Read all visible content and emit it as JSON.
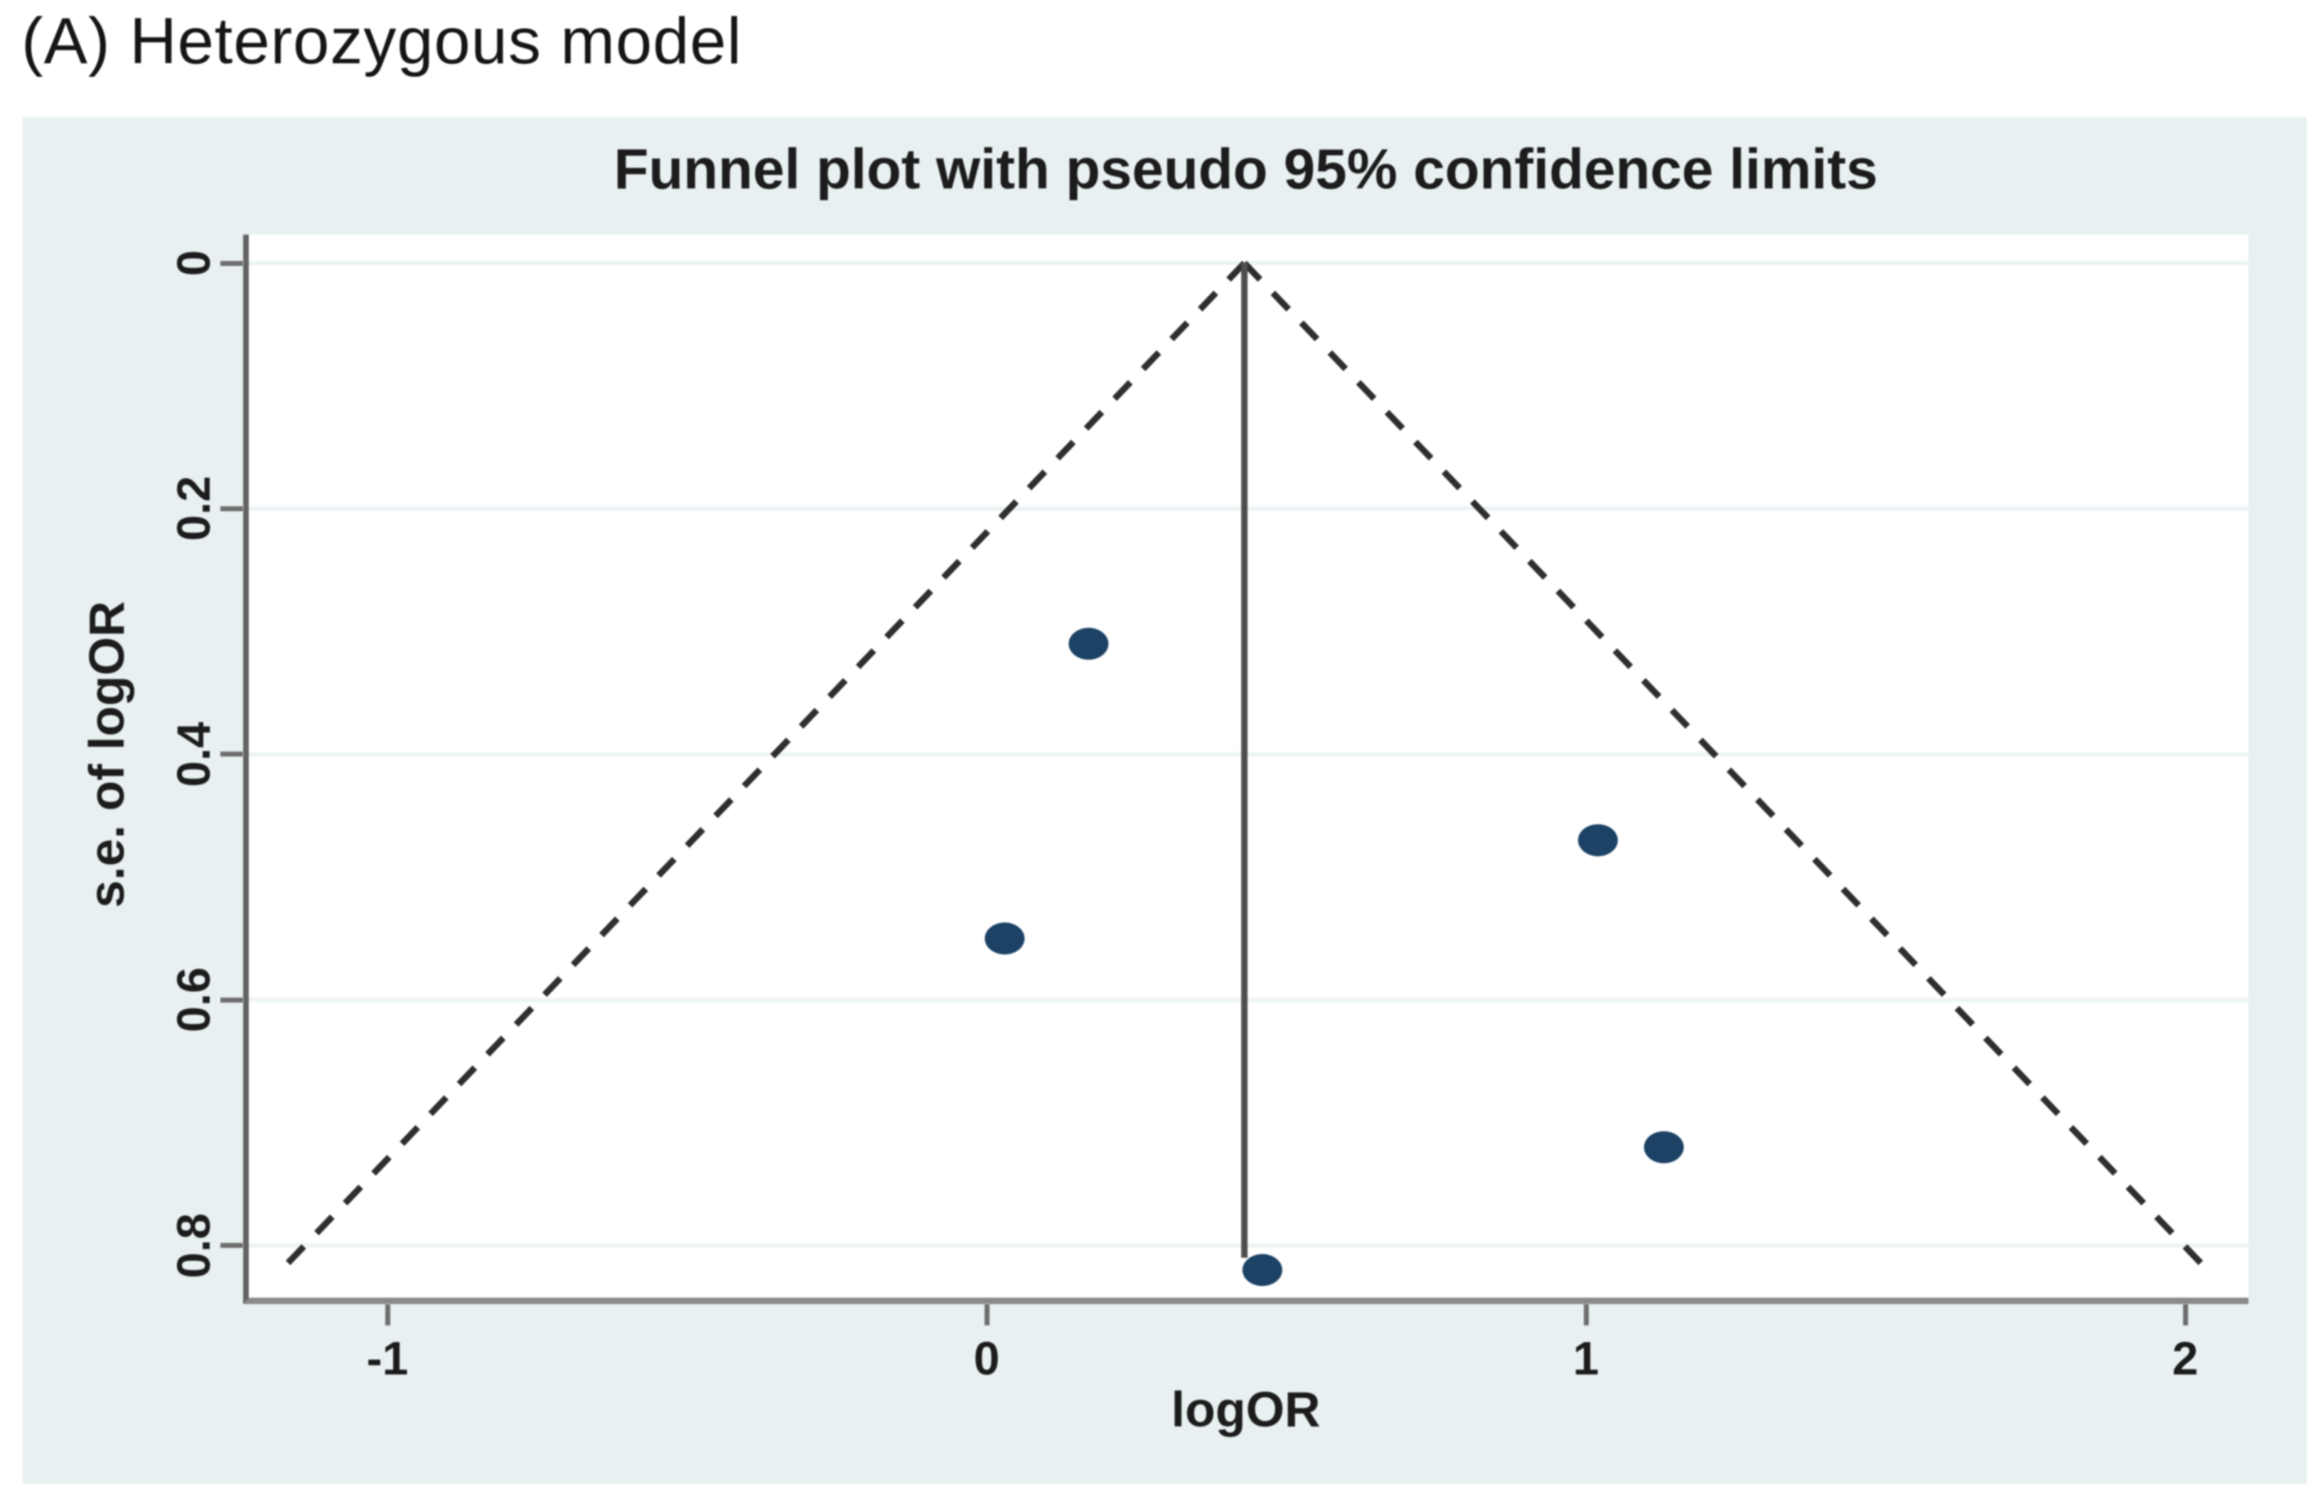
{
  "figure": {
    "label": "(A) Heterozygous model"
  },
  "chart_data": {
    "type": "scatter",
    "title": "Funnel plot with pseudo 95% confidence limits",
    "xlabel": "logOR",
    "ylabel": "s.e. of logOR",
    "x_ticks": [
      -1,
      0,
      1,
      2
    ],
    "x_tick_labels": [
      "-1",
      "0",
      "1",
      "2"
    ],
    "y_ticks": [
      0,
      0.2,
      0.4,
      0.6,
      0.8
    ],
    "y_tick_labels": [
      "0",
      "0.2",
      "0.4",
      "0.6",
      "0.8"
    ],
    "x_axis_range": [
      -1.23,
      2.1
    ],
    "y_axis_range": [
      0,
      0.84
    ],
    "y_axis_inverted": true,
    "grid": true,
    "legend": "none",
    "points": [
      {
        "x": 0.17,
        "y": 0.31
      },
      {
        "x": 0.03,
        "y": 0.55
      },
      {
        "x": 1.02,
        "y": 0.47
      },
      {
        "x": 1.13,
        "y": 0.72
      },
      {
        "x": 0.46,
        "y": 0.82
      }
    ],
    "pooled_logOR": 0.43,
    "funnel": {
      "se_at_base": 0.82,
      "ci_multiplier": 1.96,
      "style": "dashed"
    },
    "pooled_line": {
      "x": 0.43,
      "y_from": 0,
      "y_to": 0.81,
      "style": "solid"
    },
    "colors": {
      "point": "#1c4265",
      "panel_background": "#e9f0f2",
      "plot_background": "#ffffff",
      "gridline": "#edf4f6",
      "dashed_ci": "#2e2e2e",
      "pooled_line": "#4f4f4f",
      "axis_spine": "#6e6e6e",
      "text": "#1c1c1c"
    }
  }
}
